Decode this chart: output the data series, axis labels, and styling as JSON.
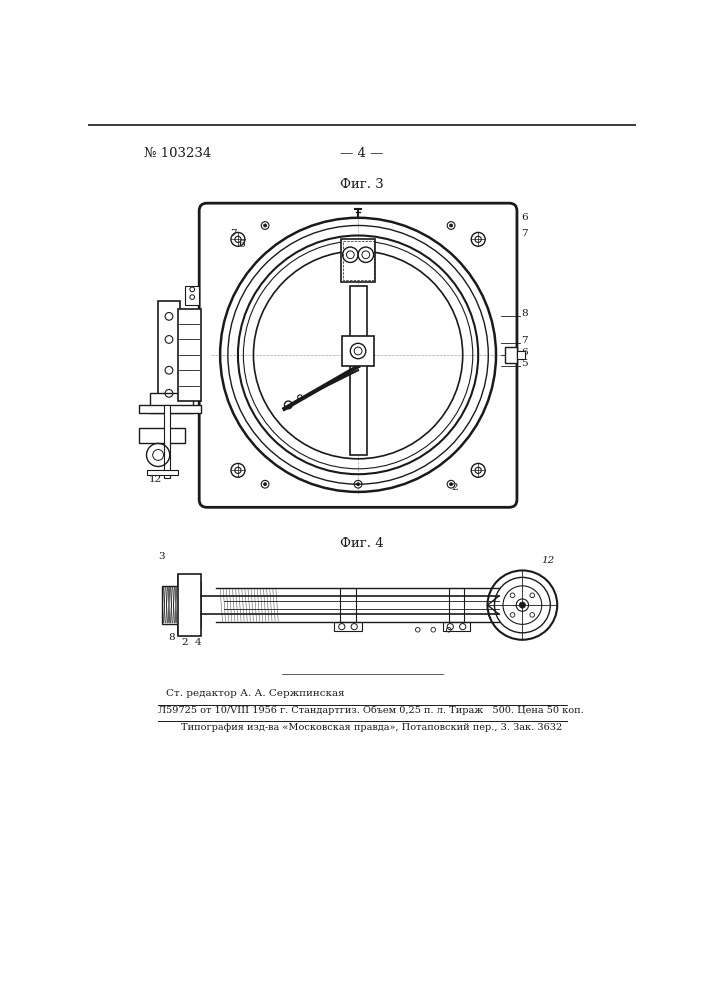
{
  "page_number": "№ 103234",
  "page_num_right": "— 4 —",
  "fig3_label": "Фиг. 3",
  "fig4_label": "Фиг. 4",
  "footer_editor": "Ст. редактор А. А. Сержпинская",
  "footer_line1": "Л59725 от 10/VIII 1956 г. Стандартгиз. Объем 0,25 п. л. Тираж   500. Цена 50 коп.",
  "footer_line2": "Типография изд-ва «Московская правда», Потаповский пер., 3. Зак. 3632",
  "bg_color": "#ffffff",
  "line_color": "#1a1a1a",
  "text_color": "#1a1a1a"
}
